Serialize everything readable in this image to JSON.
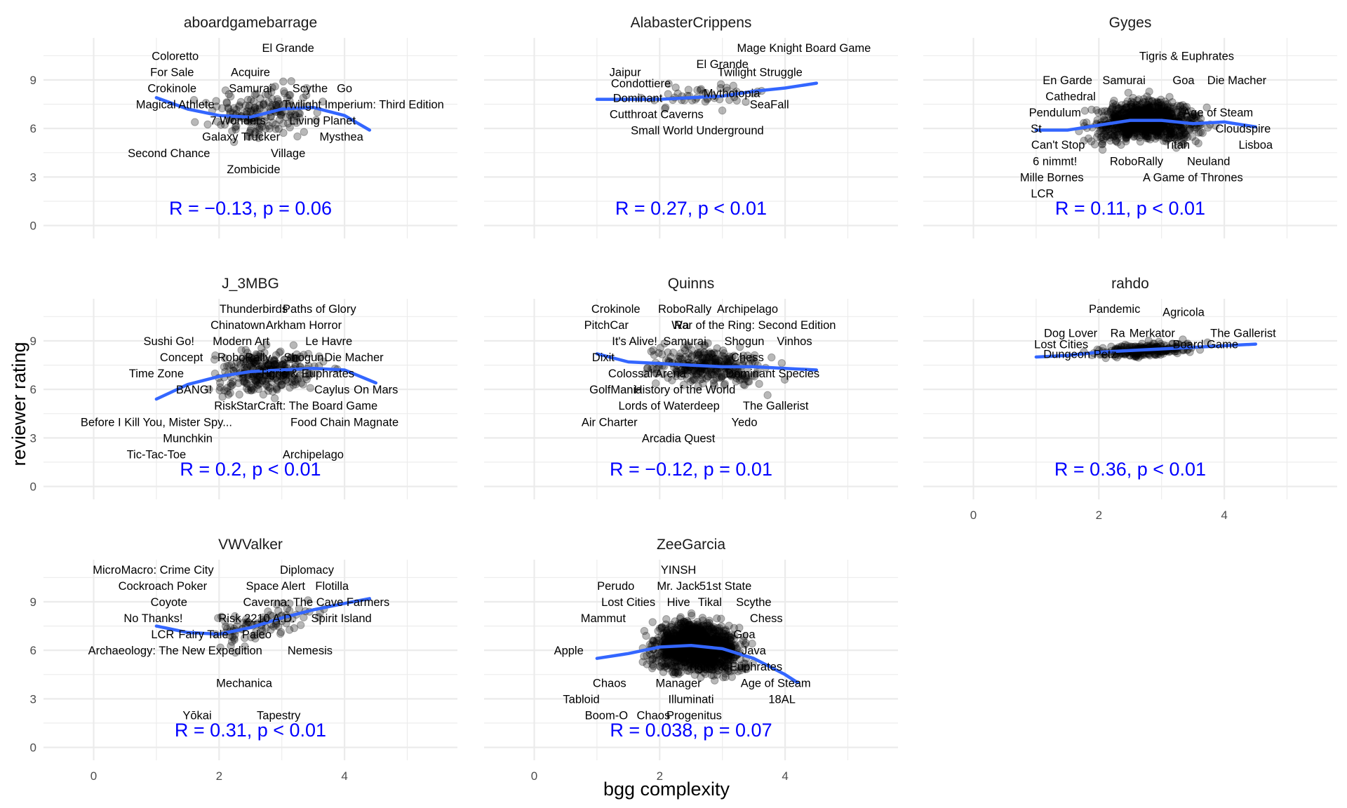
{
  "chart_data": {
    "type": "scatter",
    "xlabel": "bgg complexity",
    "ylabel": "reviewer rating",
    "xlim": [
      -0.8,
      5.8
    ],
    "ylim": [
      -0.8,
      11.6
    ],
    "xticks": [
      "0",
      "2",
      "4"
    ],
    "yticks": [
      "0",
      "3",
      "6",
      "9"
    ],
    "grid": true,
    "point_color": "#000000",
    "smooth_color": "#3366ff",
    "stat_color": "#0000ff",
    "panels": [
      {
        "name": "aboardgamebarrage",
        "stat": "R = −0.13, p = 0.06",
        "smooth": [
          [
            1.0,
            7.9
          ],
          [
            1.5,
            7.2
          ],
          [
            2.0,
            6.8
          ],
          [
            2.5,
            6.7
          ],
          [
            3.0,
            7.2
          ],
          [
            3.5,
            7.3
          ],
          [
            4.0,
            6.8
          ],
          [
            4.4,
            5.9
          ]
        ],
        "labels": [
          {
            "text": "El Grande",
            "x": 3.1,
            "y": 11.0
          },
          {
            "text": "Coloretto",
            "x": 1.3,
            "y": 10.5
          },
          {
            "text": "For Sale",
            "x": 1.25,
            "y": 9.5
          },
          {
            "text": "Acquire",
            "x": 2.5,
            "y": 9.5
          },
          {
            "text": "Crokinole",
            "x": 1.25,
            "y": 8.5
          },
          {
            "text": "Samurai",
            "x": 2.5,
            "y": 8.5
          },
          {
            "text": "Scythe",
            "x": 3.45,
            "y": 8.5
          },
          {
            "text": "Go",
            "x": 4.0,
            "y": 8.5
          },
          {
            "text": "Magical Athlete",
            "x": 1.3,
            "y": 7.5
          },
          {
            "text": "Twilight Imperium: Third Edition",
            "x": 4.3,
            "y": 7.5
          },
          {
            "text": "7 Wonders",
            "x": 2.3,
            "y": 6.5
          },
          {
            "text": "Living Planet",
            "x": 3.65,
            "y": 6.5
          },
          {
            "text": "Galaxy Trucker",
            "x": 2.35,
            "y": 5.5
          },
          {
            "text": "Mysthea",
            "x": 3.95,
            "y": 5.5
          },
          {
            "text": "Second Chance",
            "x": 1.2,
            "y": 4.5
          },
          {
            "text": "Village",
            "x": 3.1,
            "y": 4.5
          },
          {
            "text": "Zombicide",
            "x": 2.55,
            "y": 3.5
          }
        ]
      },
      {
        "name": "AlabasterCrippens",
        "stat": "R = 0.27, p < 0.01",
        "smooth": [
          [
            1.0,
            7.8
          ],
          [
            1.5,
            7.8
          ],
          [
            2.0,
            7.8
          ],
          [
            2.5,
            7.9
          ],
          [
            3.0,
            8.0
          ],
          [
            3.5,
            8.3
          ],
          [
            4.0,
            8.5
          ],
          [
            4.5,
            8.8
          ]
        ],
        "labels": [
          {
            "text": "Mage Knight Board Game",
            "x": 4.3,
            "y": 11.0
          },
          {
            "text": "El Grande",
            "x": 3.0,
            "y": 10.0
          },
          {
            "text": "Jaipur",
            "x": 1.45,
            "y": 9.5
          },
          {
            "text": "Twilight Struggle",
            "x": 3.6,
            "y": 9.5
          },
          {
            "text": "Condottiere",
            "x": 1.7,
            "y": 8.8
          },
          {
            "text": "Dominant",
            "x": 1.65,
            "y": 7.9
          },
          {
            "text": "Mythotopia",
            "x": 3.15,
            "y": 8.2
          },
          {
            "text": "SeaFall",
            "x": 3.75,
            "y": 7.5
          },
          {
            "text": "Cutthroat Caverns",
            "x": 1.95,
            "y": 6.9
          },
          {
            "text": "Small World Underground",
            "x": 2.6,
            "y": 5.9
          }
        ]
      },
      {
        "name": "Gyges",
        "stat": "R = 0.11, p < 0.01",
        "smooth": [
          [
            1.0,
            5.9
          ],
          [
            1.5,
            5.9
          ],
          [
            2.0,
            6.2
          ],
          [
            2.5,
            6.5
          ],
          [
            3.0,
            6.5
          ],
          [
            3.5,
            6.3
          ],
          [
            4.0,
            6.4
          ],
          [
            4.5,
            6.1
          ]
        ],
        "labels": [
          {
            "text": "Tigris & Euphrates",
            "x": 3.4,
            "y": 10.5
          },
          {
            "text": "En Garde",
            "x": 1.5,
            "y": 9.0
          },
          {
            "text": "Samurai",
            "x": 2.4,
            "y": 9.0
          },
          {
            "text": "Goa",
            "x": 3.35,
            "y": 9.0
          },
          {
            "text": "Die Macher",
            "x": 4.2,
            "y": 9.0
          },
          {
            "text": "Cathedral",
            "x": 1.55,
            "y": 8.0
          },
          {
            "text": "Age of Steam",
            "x": 3.9,
            "y": 7.0
          },
          {
            "text": "Pendulum",
            "x": 1.3,
            "y": 7.0
          },
          {
            "text": "St",
            "x": 1.0,
            "y": 6.0
          },
          {
            "text": "Cloudspire",
            "x": 4.3,
            "y": 6.0
          },
          {
            "text": "Can't Stop",
            "x": 1.35,
            "y": 5.0
          },
          {
            "text": "Titan",
            "x": 3.25,
            "y": 5.0
          },
          {
            "text": "Lisboa",
            "x": 4.5,
            "y": 5.0
          },
          {
            "text": "6 nimmt!",
            "x": 1.3,
            "y": 4.0
          },
          {
            "text": "RoboRally",
            "x": 2.6,
            "y": 4.0
          },
          {
            "text": "Neuland",
            "x": 3.75,
            "y": 4.0
          },
          {
            "text": "Mille Bornes",
            "x": 1.25,
            "y": 3.0
          },
          {
            "text": "A Game of Thrones",
            "x": 3.5,
            "y": 3.0
          },
          {
            "text": "LCR",
            "x": 1.1,
            "y": 2.0
          }
        ]
      },
      {
        "name": "J_3MBG",
        "stat": "R = 0.2, p < 0.01",
        "smooth": [
          [
            1.0,
            5.4
          ],
          [
            1.5,
            6.3
          ],
          [
            2.0,
            6.8
          ],
          [
            2.5,
            7.1
          ],
          [
            3.0,
            7.2
          ],
          [
            3.5,
            7.3
          ],
          [
            4.0,
            7.2
          ],
          [
            4.5,
            6.4
          ]
        ],
        "labels": [
          {
            "text": "Thunderbirds",
            "x": 2.55,
            "y": 11.0
          },
          {
            "text": "Paths of Glory",
            "x": 3.6,
            "y": 11.0
          },
          {
            "text": "Chinatown",
            "x": 2.3,
            "y": 10.0
          },
          {
            "text": "Arkham Horror",
            "x": 3.35,
            "y": 10.0
          },
          {
            "text": "Sushi Go!",
            "x": 1.2,
            "y": 9.0
          },
          {
            "text": "Modern Art",
            "x": 2.35,
            "y": 9.0
          },
          {
            "text": "Le Havre",
            "x": 3.75,
            "y": 9.0
          },
          {
            "text": "Concept",
            "x": 1.4,
            "y": 8.0
          },
          {
            "text": "RoboRally",
            "x": 2.4,
            "y": 8.0
          },
          {
            "text": "Shogun",
            "x": 3.35,
            "y": 8.0
          },
          {
            "text": "Die Macher",
            "x": 4.15,
            "y": 8.0
          },
          {
            "text": "Time Zone",
            "x": 1.0,
            "y": 7.0
          },
          {
            "text": "Tigris & Euphrates",
            "x": 3.4,
            "y": 7.0
          },
          {
            "text": "BANG!",
            "x": 1.6,
            "y": 6.0
          },
          {
            "text": "Caylus",
            "x": 3.8,
            "y": 6.0
          },
          {
            "text": "On Mars",
            "x": 4.5,
            "y": 6.0
          },
          {
            "text": "Risk",
            "x": 2.1,
            "y": 5.0
          },
          {
            "text": "StarCraft: The Board Game",
            "x": 3.4,
            "y": 5.0
          },
          {
            "text": "Before I Kill You, Mister Spy...",
            "x": 1.0,
            "y": 4.0
          },
          {
            "text": "Food Chain Magnate",
            "x": 4.0,
            "y": 4.0
          },
          {
            "text": "Munchkin",
            "x": 1.5,
            "y": 3.0
          },
          {
            "text": "Tic-Tac-Toe",
            "x": 1.0,
            "y": 2.0
          },
          {
            "text": "Archipelago",
            "x": 3.5,
            "y": 2.0
          }
        ]
      },
      {
        "name": "Quinns",
        "stat": "R = −0.12, p = 0.01",
        "smooth": [
          [
            1.0,
            8.2
          ],
          [
            1.5,
            7.7
          ],
          [
            2.0,
            7.6
          ],
          [
            2.5,
            7.5
          ],
          [
            3.0,
            7.4
          ],
          [
            3.5,
            7.4
          ],
          [
            4.0,
            7.3
          ],
          [
            4.5,
            7.2
          ]
        ],
        "labels": [
          {
            "text": "Crokinole",
            "x": 1.3,
            "y": 11.0
          },
          {
            "text": "RoboRally",
            "x": 2.4,
            "y": 11.0
          },
          {
            "text": "Archipelago",
            "x": 3.4,
            "y": 11.0
          },
          {
            "text": "PitchCar",
            "x": 1.15,
            "y": 10.0
          },
          {
            "text": "Ra",
            "x": 2.35,
            "y": 10.0
          },
          {
            "text": "War of the Ring: Second Edition",
            "x": 3.5,
            "y": 10.0
          },
          {
            "text": "It's Alive!",
            "x": 1.6,
            "y": 9.0
          },
          {
            "text": "Samurai",
            "x": 2.4,
            "y": 9.0
          },
          {
            "text": "Shogun",
            "x": 3.35,
            "y": 9.0
          },
          {
            "text": "Vinhos",
            "x": 4.15,
            "y": 9.0
          },
          {
            "text": "Dixit",
            "x": 1.1,
            "y": 8.0
          },
          {
            "text": "Chess",
            "x": 3.4,
            "y": 8.0
          },
          {
            "text": "Colossal Arena",
            "x": 1.8,
            "y": 7.0
          },
          {
            "text": "Dominant Species",
            "x": 3.8,
            "y": 7.0
          },
          {
            "text": "GolfMania",
            "x": 1.3,
            "y": 6.0
          },
          {
            "text": "History of the World",
            "x": 2.4,
            "y": 6.0
          },
          {
            "text": "Lords of Waterdeep",
            "x": 2.15,
            "y": 5.0
          },
          {
            "text": "The Gallerist",
            "x": 3.85,
            "y": 5.0
          },
          {
            "text": "Air Charter",
            "x": 1.2,
            "y": 4.0
          },
          {
            "text": "Yedo",
            "x": 3.35,
            "y": 4.0
          },
          {
            "text": "Arcadia Quest",
            "x": 2.3,
            "y": 3.0
          }
        ]
      },
      {
        "name": "rahdo",
        "stat": "R = 0.36, p < 0.01",
        "smooth": [
          [
            1.0,
            8.0
          ],
          [
            1.5,
            8.1
          ],
          [
            2.0,
            8.3
          ],
          [
            2.5,
            8.4
          ],
          [
            3.0,
            8.5
          ],
          [
            3.5,
            8.6
          ],
          [
            4.0,
            8.7
          ],
          [
            4.5,
            8.8
          ]
        ],
        "labels": [
          {
            "text": "Pandemic",
            "x": 2.25,
            "y": 11.0
          },
          {
            "text": "Agricola",
            "x": 3.35,
            "y": 10.8
          },
          {
            "text": "Dog Lover",
            "x": 1.55,
            "y": 9.5
          },
          {
            "text": "Ra",
            "x": 2.3,
            "y": 9.5
          },
          {
            "text": "Merkator",
            "x": 2.85,
            "y": 9.5
          },
          {
            "text": "The Gallerist",
            "x": 4.3,
            "y": 9.5
          },
          {
            "text": "Lost Cities",
            "x": 1.4,
            "y": 8.8
          },
          {
            "text": "Board Game",
            "x": 3.7,
            "y": 8.8
          },
          {
            "text": "Dungeon Petz",
            "x": 1.7,
            "y": 8.2
          }
        ]
      },
      {
        "name": "VWValker",
        "stat": "R = 0.31, p < 0.01",
        "smooth": [
          [
            1.0,
            7.5
          ],
          [
            1.5,
            7.1
          ],
          [
            2.0,
            7.0
          ],
          [
            2.5,
            7.4
          ],
          [
            3.0,
            8.0
          ],
          [
            3.5,
            8.5
          ],
          [
            4.0,
            8.9
          ],
          [
            4.4,
            9.2
          ]
        ],
        "labels": [
          {
            "text": "MicroMacro: Crime City",
            "x": 0.95,
            "y": 11.0
          },
          {
            "text": "Diplomacy",
            "x": 3.4,
            "y": 11.0
          },
          {
            "text": "Cockroach Poker",
            "x": 1.1,
            "y": 10.0
          },
          {
            "text": "Space Alert",
            "x": 2.9,
            "y": 10.0
          },
          {
            "text": "Flotilla",
            "x": 3.8,
            "y": 10.0
          },
          {
            "text": "Coyote",
            "x": 1.2,
            "y": 9.0
          },
          {
            "text": "Caverna: The Cave Farmers",
            "x": 3.55,
            "y": 9.0
          },
          {
            "text": "No Thanks!",
            "x": 0.95,
            "y": 8.0
          },
          {
            "text": "Risk 2210 A.D.",
            "x": 2.6,
            "y": 8.0
          },
          {
            "text": "Spirit Island",
            "x": 3.95,
            "y": 8.0
          },
          {
            "text": "LCR",
            "x": 1.1,
            "y": 7.0
          },
          {
            "text": "Fairy Tale",
            "x": 1.75,
            "y": 7.0
          },
          {
            "text": "Paleo",
            "x": 2.6,
            "y": 7.0
          },
          {
            "text": "Archaeology: The New Expedition",
            "x": 1.3,
            "y": 6.0
          },
          {
            "text": "Nemesis",
            "x": 3.45,
            "y": 6.0
          },
          {
            "text": "Mechanica",
            "x": 2.4,
            "y": 4.0
          },
          {
            "text": "Yōkai",
            "x": 1.65,
            "y": 2.0
          },
          {
            "text": "Tapestry",
            "x": 2.95,
            "y": 2.0
          }
        ]
      },
      {
        "name": "ZeeGarcia",
        "stat": "R = 0.038, p = 0.07",
        "smooth": [
          [
            1.0,
            5.5
          ],
          [
            1.5,
            5.8
          ],
          [
            2.0,
            6.2
          ],
          [
            2.5,
            6.3
          ],
          [
            3.0,
            6.1
          ],
          [
            3.5,
            5.5
          ],
          [
            4.0,
            4.5
          ],
          [
            4.2,
            4.0
          ]
        ],
        "labels": [
          {
            "text": "YINSH",
            "x": 2.3,
            "y": 11.0
          },
          {
            "text": "Perudo",
            "x": 1.3,
            "y": 10.0
          },
          {
            "text": "Mr. Jack",
            "x": 2.3,
            "y": 10.0
          },
          {
            "text": "51st State",
            "x": 3.05,
            "y": 10.0
          },
          {
            "text": "Lost Cities",
            "x": 1.5,
            "y": 9.0
          },
          {
            "text": "Hive",
            "x": 2.3,
            "y": 9.0
          },
          {
            "text": "Tikal",
            "x": 2.8,
            "y": 9.0
          },
          {
            "text": "Scythe",
            "x": 3.5,
            "y": 9.0
          },
          {
            "text": "Mammut",
            "x": 1.1,
            "y": 8.0
          },
          {
            "text": "Chess",
            "x": 3.7,
            "y": 8.0
          },
          {
            "text": "Goa",
            "x": 3.35,
            "y": 7.0
          },
          {
            "text": "Apple",
            "x": 0.55,
            "y": 6.0
          },
          {
            "text": "Java",
            "x": 3.5,
            "y": 6.0
          },
          {
            "text": "Tigris & Euphrates",
            "x": 3.2,
            "y": 5.0
          },
          {
            "text": "Chaos",
            "x": 1.2,
            "y": 4.0
          },
          {
            "text": "Manager",
            "x": 2.3,
            "y": 4.0
          },
          {
            "text": "Age of Steam",
            "x": 3.85,
            "y": 4.0
          },
          {
            "text": "Tabloid",
            "x": 0.75,
            "y": 3.0
          },
          {
            "text": "Illuminati",
            "x": 2.5,
            "y": 3.0
          },
          {
            "text": "18AL",
            "x": 3.95,
            "y": 3.0
          },
          {
            "text": "Boom-O",
            "x": 1.15,
            "y": 2.0
          },
          {
            "text": "Chaos",
            "x": 1.9,
            "y": 2.0
          },
          {
            "text": "Progenitus",
            "x": 2.55,
            "y": 2.0
          }
        ]
      }
    ]
  }
}
